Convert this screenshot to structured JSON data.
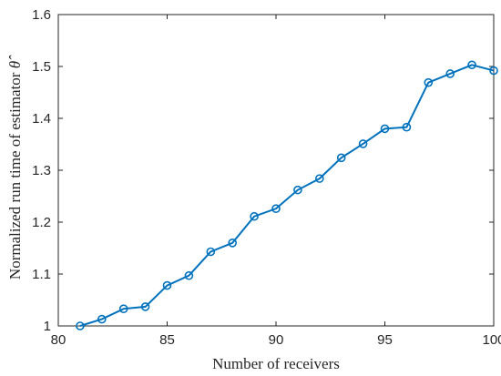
{
  "chart_data": {
    "type": "line",
    "xlabel": "Number of receivers",
    "ylabel_text": "Normalized run time of estimator ",
    "ylabel_symbol": "θ̂",
    "xlim": [
      80,
      100
    ],
    "ylim": [
      1.0,
      1.6
    ],
    "x_ticks": [
      "80",
      "85",
      "90",
      "95",
      "100"
    ],
    "y_ticks": [
      "1",
      "1.1",
      "1.2",
      "1.3",
      "1.4",
      "1.5",
      "1.6"
    ],
    "grid": false,
    "series": [
      {
        "color": "#0072BD",
        "marker": "circle",
        "x": [
          81,
          82,
          83,
          84,
          85,
          86,
          87,
          88,
          89,
          90,
          91,
          92,
          93,
          94,
          95,
          96,
          97,
          98,
          99,
          100
        ],
        "y": [
          1.0,
          1.013,
          1.033,
          1.037,
          1.078,
          1.097,
          1.143,
          1.16,
          1.211,
          1.226,
          1.262,
          1.284,
          1.324,
          1.351,
          1.38,
          1.383,
          1.469,
          1.486,
          1.503,
          1.492
        ]
      }
    ]
  }
}
